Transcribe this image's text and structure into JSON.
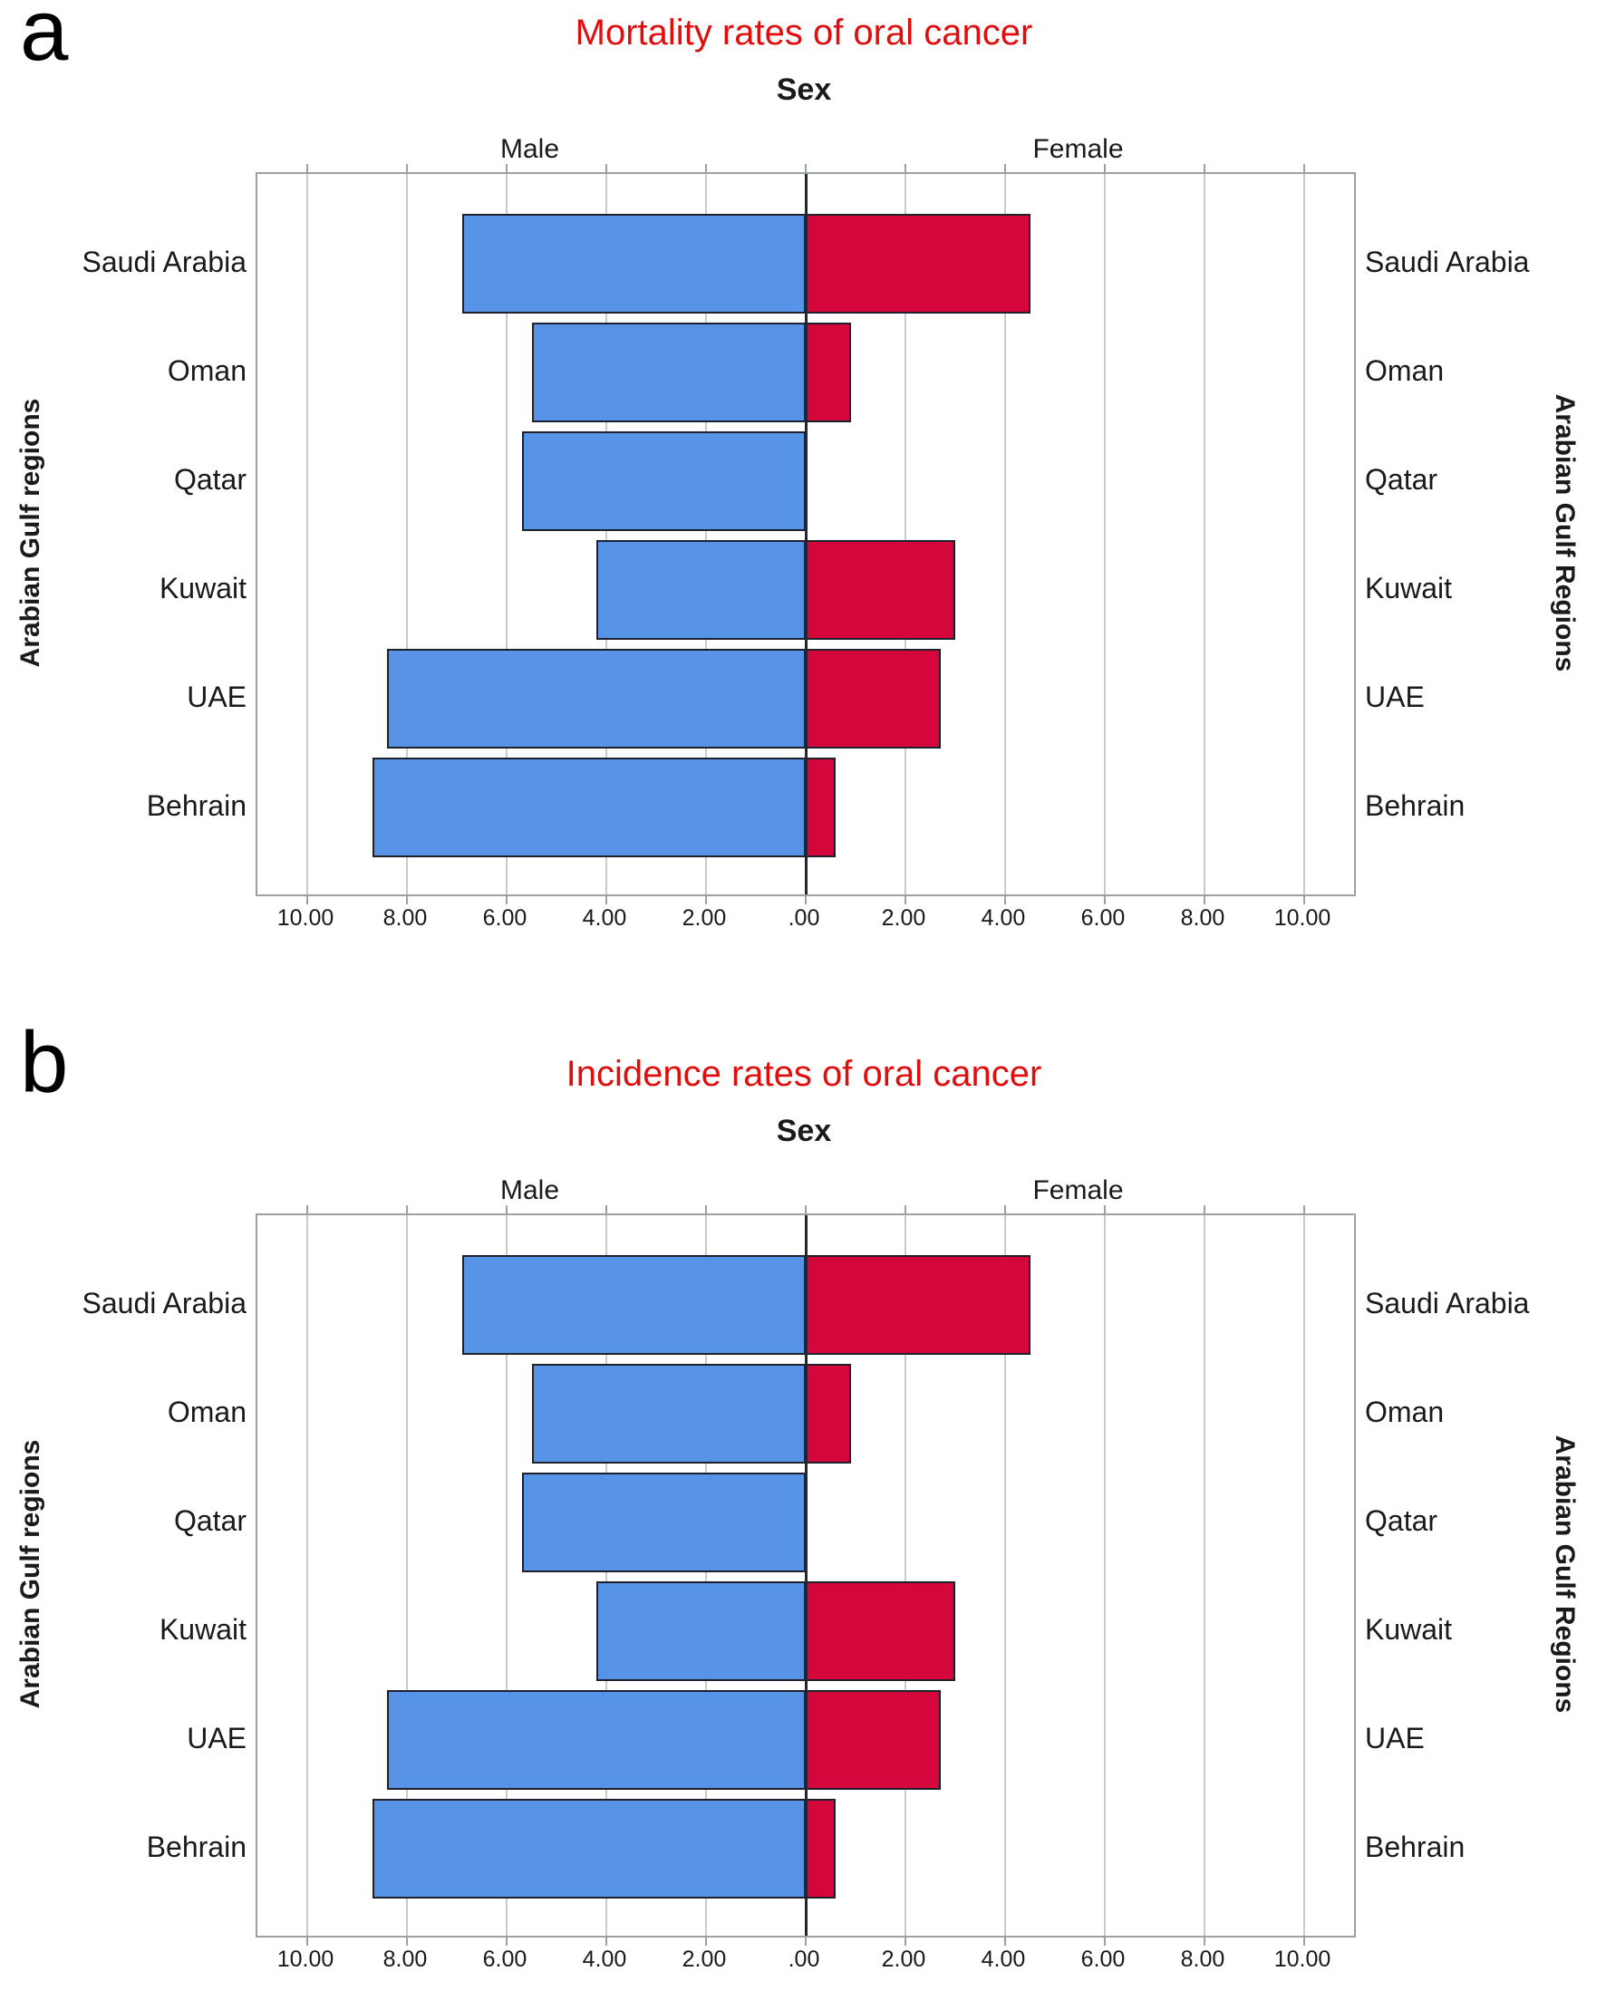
{
  "colors": {
    "male_bar": "#5794E7",
    "female_bar": "#D4063C",
    "bar_border": "#1d212b",
    "title_red": "#E10D0D",
    "gridline": "#cbcbcb",
    "frame": "#9da0a3",
    "text": "#1a1a1a"
  },
  "chart_data": [
    {
      "type": "bar",
      "variant": "population-pyramid",
      "panel_letter": "a",
      "title": "Mortality rates of oral cancer",
      "group_header": "Sex",
      "left_series_label": "Male",
      "right_series_label": "Female",
      "left_axis_title": "Arabian Gulf regions",
      "right_axis_title": "Arabian Gulf Regions",
      "categories": [
        "Saudi Arabia",
        "Oman",
        "Qatar",
        "Kuwait",
        "UAE",
        "Behrain"
      ],
      "series": [
        {
          "name": "Male",
          "side": "left",
          "color": "#5794E7",
          "values": [
            6.9,
            5.5,
            5.7,
            4.2,
            8.4,
            8.7
          ]
        },
        {
          "name": "Female",
          "side": "right",
          "color": "#D4063C",
          "values": [
            4.5,
            0.9,
            0,
            3.0,
            2.7,
            0.6
          ]
        }
      ],
      "x_tick_labels": [
        "10.00",
        "8.00",
        "6.00",
        "4.00",
        "2.00",
        ".00",
        "2.00",
        "4.00",
        "6.00",
        "8.00",
        "10.00"
      ],
      "x_tick_values": [
        -10,
        -8,
        -6,
        -4,
        -2,
        0,
        2,
        4,
        6,
        8,
        10
      ],
      "xlim_per_side": [
        0,
        11
      ],
      "grid": true,
      "legend_position": "none"
    },
    {
      "type": "bar",
      "variant": "population-pyramid",
      "panel_letter": "b",
      "title": "Incidence rates of oral cancer",
      "group_header": "Sex",
      "left_series_label": "Male",
      "right_series_label": "Female",
      "left_axis_title": "Arabian Gulf regions",
      "right_axis_title": "Arabian Gulf Regions",
      "categories": [
        "Saudi Arabia",
        "Oman",
        "Qatar",
        "Kuwait",
        "UAE",
        "Behrain"
      ],
      "series": [
        {
          "name": "Male",
          "side": "left",
          "color": "#5794E7",
          "values": [
            6.9,
            5.5,
            5.7,
            4.2,
            8.4,
            8.7
          ]
        },
        {
          "name": "Female",
          "side": "right",
          "color": "#D4063C",
          "values": [
            4.5,
            0.9,
            0,
            3.0,
            2.7,
            0.6
          ]
        }
      ],
      "x_tick_labels": [
        "10.00",
        "8.00",
        "6.00",
        "4.00",
        "2.00",
        ".00",
        "2.00",
        "4.00",
        "6.00",
        "8.00",
        "10.00"
      ],
      "x_tick_values": [
        -10,
        -8,
        -6,
        -4,
        -2,
        0,
        2,
        4,
        6,
        8,
        10
      ],
      "xlim_per_side": [
        0,
        11
      ],
      "grid": true,
      "legend_position": "none"
    }
  ]
}
